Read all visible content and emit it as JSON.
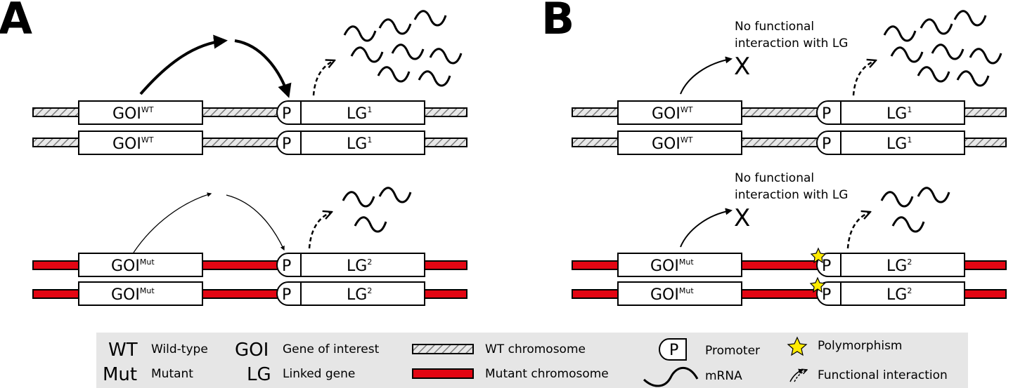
{
  "panels": [
    {
      "letter": "A",
      "rows": [
        {
          "goi": "GOI",
          "goi_sup": "WT",
          "lg": "LG",
          "lg_sup": "1",
          "promoter": "P",
          "chromosome": "wt"
        },
        {
          "goi": "GOI",
          "goi_sup": "WT",
          "lg": "LG",
          "lg_sup": "1",
          "promoter": "P",
          "chromosome": "wt"
        },
        {
          "goi": "GOI",
          "goi_sup": "Mut",
          "lg": "LG",
          "lg_sup": "2",
          "promoter": "P",
          "chromosome": "mut"
        },
        {
          "goi": "GOI",
          "goi_sup": "Mut",
          "lg": "LG",
          "lg_sup": "2",
          "promoter": "P",
          "chromosome": "mut"
        }
      ]
    },
    {
      "letter": "B",
      "rows": [
        {
          "goi": "GOI",
          "goi_sup": "WT",
          "lg": "LG",
          "lg_sup": "1",
          "promoter": "P",
          "chromosome": "wt"
        },
        {
          "goi": "GOI",
          "goi_sup": "WT",
          "lg": "LG",
          "lg_sup": "1",
          "promoter": "P",
          "chromosome": "wt"
        },
        {
          "goi": "GOI",
          "goi_sup": "Mut",
          "lg": "LG",
          "lg_sup": "2",
          "promoter": "P",
          "chromosome": "mut"
        },
        {
          "goi": "GOI",
          "goi_sup": "Mut",
          "lg": "LG",
          "lg_sup": "2",
          "promoter": "P",
          "chromosome": "mut"
        }
      ],
      "notes": [
        {
          "line1": "No functional",
          "line2": "interaction with LG",
          "mark": "X"
        },
        {
          "line1": "No functional",
          "line2": "interaction with LG",
          "mark": "X"
        }
      ]
    }
  ],
  "legend": {
    "wt_abbr": "WT",
    "wt_desc": "Wild-type",
    "mut_abbr": "Mut",
    "mut_desc": "Mutant",
    "goi_abbr": "GOI",
    "goi_desc": "Gene of interest",
    "lg_abbr": "LG",
    "lg_desc": "Linked gene",
    "wt_chrom": "WT chromosome",
    "mut_chrom": "Mutant chromosome",
    "promoter_symbol": "P",
    "promoter_desc": "Promoter",
    "mrna_desc": "mRNA",
    "polymorphism_desc": "Polymorphism",
    "interaction_desc": "Functional interaction"
  },
  "colors": {
    "mutant": "#e30613",
    "polymorphism": "#ffeb00",
    "legend_bg": "#e6e6e6",
    "hatch_fill": "#d9d9d9"
  }
}
